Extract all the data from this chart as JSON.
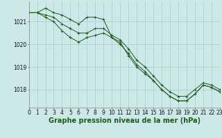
{
  "background_color": "#cce8e8",
  "grid_color": "#aacccc",
  "line_color": "#1a5c1a",
  "marker_color": "#1a5c1a",
  "xlabel": "Graphe pression niveau de la mer (hPa)",
  "xlabel_fontsize": 7,
  "tick_fontsize": 5.5,
  "ylim": [
    1017.2,
    1021.9
  ],
  "xlim": [
    0,
    23
  ],
  "yticks": [
    1018,
    1019,
    1020,
    1021
  ],
  "xticks": [
    0,
    1,
    2,
    3,
    4,
    5,
    6,
    7,
    8,
    9,
    10,
    11,
    12,
    13,
    14,
    15,
    16,
    17,
    18,
    19,
    20,
    21,
    22,
    23
  ],
  "series": [
    [
      1021.4,
      1021.4,
      1021.6,
      1021.4,
      1021.3,
      1021.1,
      1020.9,
      1021.2,
      1021.2,
      1021.1,
      1020.3,
      1020.1,
      1019.5,
      1019.0,
      1018.7,
      1018.4,
      1018.0,
      1017.7,
      1017.5,
      1017.5,
      1017.8,
      1018.2,
      1018.1,
      1017.9
    ],
    [
      1021.4,
      1021.4,
      1021.3,
      1021.2,
      1020.9,
      1020.7,
      1020.5,
      1020.5,
      1020.7,
      1020.7,
      1020.4,
      1020.2,
      1019.8,
      1019.3,
      1019.0,
      1018.6,
      1018.2,
      1017.9,
      1017.7,
      1017.7,
      1018.0,
      1018.3,
      1018.2,
      1018.0
    ],
    [
      1021.4,
      1021.4,
      1021.2,
      1021.0,
      1020.6,
      1020.3,
      1020.1,
      1020.3,
      1020.4,
      1020.5,
      1020.3,
      1020.0,
      1019.6,
      1019.1,
      1018.8,
      1018.4,
      1018.0,
      1017.7,
      1017.5,
      1017.5,
      1017.8,
      1018.2,
      1018.1,
      1017.9
    ]
  ]
}
